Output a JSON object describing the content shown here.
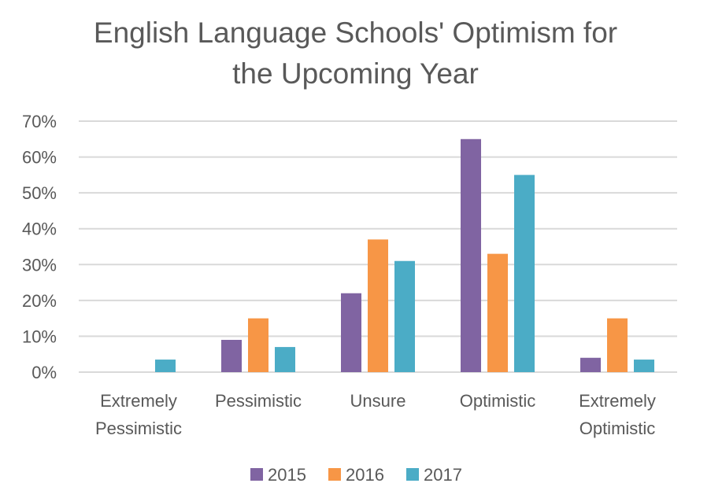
{
  "chart_data": {
    "type": "bar",
    "title_lines": [
      "English Language Schools' Optimism for",
      "the Upcoming Year"
    ],
    "categories": [
      [
        "Extremely",
        "Pessimistic"
      ],
      [
        "Pessimistic"
      ],
      [
        "Unsure"
      ],
      [
        "Optimistic"
      ],
      [
        "Extremely",
        "Optimistic"
      ]
    ],
    "series": [
      {
        "name": "2015",
        "color": "#8064a2",
        "values": [
          0,
          9,
          22,
          65,
          4
        ]
      },
      {
        "name": "2016",
        "color": "#f79646",
        "values": [
          0,
          15,
          37,
          33,
          15
        ]
      },
      {
        "name": "2017",
        "color": "#4bacc6",
        "values": [
          3.5,
          7,
          31,
          55,
          3.5
        ]
      }
    ],
    "y_ticks": [
      "0%",
      "10%",
      "20%",
      "30%",
      "40%",
      "50%",
      "60%",
      "70%"
    ],
    "ylim": [
      0,
      70
    ],
    "grid": true,
    "legend_position": "bottom",
    "colors": {
      "gridline": "#d9d9d9",
      "text": "#595959"
    }
  }
}
